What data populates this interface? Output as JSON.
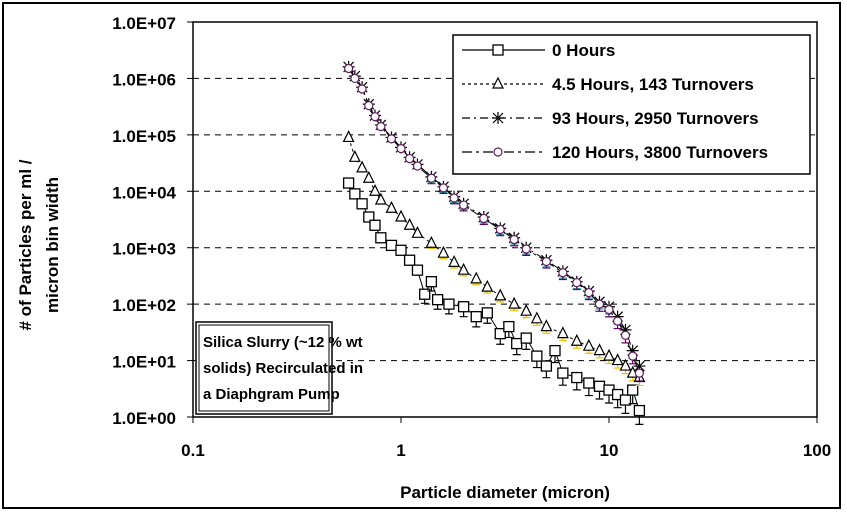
{
  "chart_data": {
    "type": "scatter",
    "title": "",
    "xlabel": "Particle diameter (micron)",
    "ylabel_lines": [
      "# of Particles per ml /",
      "micron bin width"
    ],
    "xscale": "log",
    "yscale": "log",
    "xlim": [
      0.1,
      100
    ],
    "ylim": [
      1,
      10000000
    ],
    "xticks": [
      {
        "v": 0.1,
        "label": "0.1"
      },
      {
        "v": 1,
        "label": "1"
      },
      {
        "v": 10,
        "label": "10"
      },
      {
        "v": 100,
        "label": "100"
      }
    ],
    "yticks": [
      {
        "v": 1,
        "label": "1.0E+00"
      },
      {
        "v": 10,
        "label": "1.0E+01"
      },
      {
        "v": 100,
        "label": "1.0E+02"
      },
      {
        "v": 1000,
        "label": "1.0E+03"
      },
      {
        "v": 10000,
        "label": "1.0E+04"
      },
      {
        "v": 100000,
        "label": "1.0E+05"
      },
      {
        "v": 1000000,
        "label": "1.0E+06"
      },
      {
        "v": 10000000,
        "label": "1.0E+07"
      }
    ],
    "grid": "horizontal dashed",
    "legend_position": "top-right",
    "annotation": [
      "Silica Slurry (~12 % wt",
      "solids) Recirculated in",
      "a Diaphgram Pump"
    ],
    "series": [
      {
        "name": "0 Hours",
        "marker": "square",
        "line": "solid",
        "color": "#000000",
        "errcolor": "#000000",
        "x": [
          0.56,
          0.6,
          0.65,
          0.7,
          0.75,
          0.8,
          0.9,
          1.0,
          1.1,
          1.2,
          1.3,
          1.4,
          1.5,
          1.7,
          2.0,
          2.3,
          2.6,
          3.0,
          3.3,
          3.6,
          4.0,
          4.5,
          5.0,
          5.5,
          6.0,
          7.0,
          8.0,
          9.0,
          10,
          11,
          12,
          13,
          14
        ],
        "y": [
          14000,
          9000,
          6000,
          3500,
          2500,
          1500,
          1100,
          900,
          600,
          400,
          150,
          250,
          120,
          100,
          90,
          60,
          70,
          30,
          40,
          20,
          25,
          12,
          8,
          15,
          6,
          5,
          4,
          3.5,
          3,
          2.5,
          2,
          3,
          1.3
        ]
      },
      {
        "name": "4.5 Hours, 143 Turnovers",
        "marker": "triangle",
        "line": "dotted",
        "color": "#000000",
        "errcolor": "#f0c000",
        "x": [
          0.56,
          0.6,
          0.65,
          0.7,
          0.75,
          0.8,
          0.9,
          1.0,
          1.1,
          1.2,
          1.4,
          1.6,
          1.8,
          2.0,
          2.3,
          2.6,
          3.0,
          3.5,
          4.0,
          4.5,
          5.0,
          6.0,
          7.0,
          8.0,
          9.0,
          10,
          11,
          12,
          13,
          14
        ],
        "y": [
          90000,
          40000,
          26000,
          17000,
          10000,
          7000,
          5000,
          3500,
          2500,
          1800,
          1200,
          800,
          550,
          400,
          280,
          200,
          140,
          100,
          75,
          55,
          40,
          30,
          22,
          18,
          15,
          12,
          10,
          8,
          6,
          5
        ]
      },
      {
        "name": "93 Hours, 2950 Turnovers",
        "marker": "star",
        "line": "dashdot",
        "color": "#000000",
        "errcolor": "#20a0a0",
        "x": [
          0.56,
          0.6,
          0.65,
          0.7,
          0.75,
          0.8,
          0.9,
          1.0,
          1.1,
          1.2,
          1.4,
          1.6,
          1.8,
          2.0,
          2.5,
          3.0,
          3.5,
          4.0,
          5.0,
          6.0,
          7.0,
          8.0,
          9.0,
          10,
          11,
          12,
          13,
          14
        ],
        "y": [
          1600000,
          1100000,
          700000,
          350000,
          220000,
          150000,
          90000,
          60000,
          40000,
          30000,
          18000,
          12000,
          8000,
          6000,
          3500,
          2200,
          1500,
          1000,
          600,
          380,
          250,
          170,
          110,
          90,
          60,
          35,
          15,
          8
        ]
      },
      {
        "name": "120 Hours, 3800 Turnovers",
        "marker": "circle",
        "line": "dashdot2",
        "color": "#000000",
        "errcolor": "#600060",
        "x": [
          0.56,
          0.6,
          0.65,
          0.7,
          0.75,
          0.8,
          0.9,
          1.0,
          1.1,
          1.2,
          1.4,
          1.6,
          1.8,
          2.0,
          2.5,
          3.0,
          3.5,
          4.0,
          5.0,
          6.0,
          7.0,
          8.0,
          9.0,
          10,
          11,
          12,
          13,
          14
        ],
        "y": [
          1500000,
          1000000,
          650000,
          330000,
          210000,
          140000,
          85000,
          57000,
          38000,
          28000,
          17000,
          11500,
          7600,
          5700,
          3300,
          2100,
          1400,
          950,
          570,
          360,
          240,
          160,
          100,
          80,
          50,
          28,
          12,
          6
        ]
      }
    ]
  }
}
